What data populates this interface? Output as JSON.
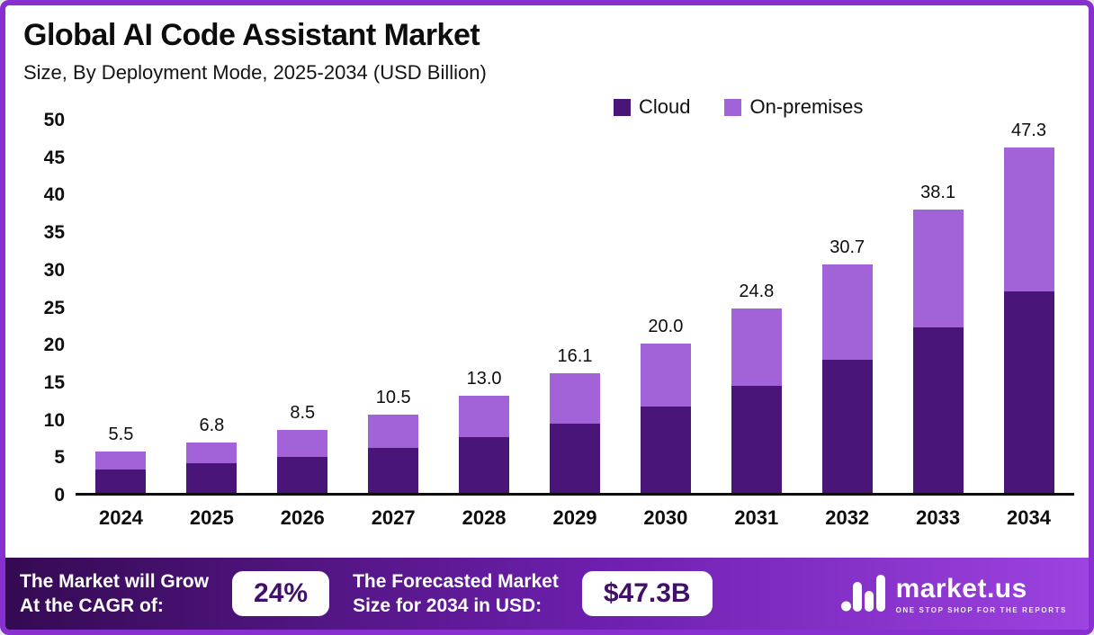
{
  "header": {
    "title": "Global AI Code Assistant Market",
    "subtitle": "Size, By Deployment Mode, 2025-2034 (USD Billion)"
  },
  "legend": [
    {
      "label": "Cloud",
      "color": "#4a1579"
    },
    {
      "label": "On-premises",
      "color": "#a263d8"
    }
  ],
  "chart_data": {
    "type": "bar",
    "stacked": true,
    "title": "Global AI Code Assistant Market Size, By Deployment Mode, 2025-2034 (USD Billion)",
    "categories": [
      "2024",
      "2025",
      "2026",
      "2027",
      "2028",
      "2029",
      "2030",
      "2031",
      "2032",
      "2033",
      "2034"
    ],
    "series": [
      {
        "name": "Cloud",
        "color": "#4a1579",
        "values": [
          3.2,
          4.0,
          4.8,
          6.1,
          7.5,
          9.3,
          11.6,
          14.4,
          17.9,
          22.2,
          27.6
        ]
      },
      {
        "name": "On-premises",
        "color": "#a263d8",
        "values": [
          2.3,
          2.8,
          3.7,
          4.4,
          5.5,
          6.8,
          8.4,
          10.4,
          12.8,
          15.9,
          19.7
        ]
      }
    ],
    "totals": [
      5.5,
      6.8,
      8.5,
      10.5,
      13.0,
      16.1,
      20.0,
      24.8,
      30.7,
      38.1,
      47.3
    ],
    "total_labels": [
      "5.5",
      "6.8",
      "8.5",
      "10.5",
      "13.0",
      "16.1",
      "20.0",
      "24.8",
      "30.7",
      "38.1",
      "47.3"
    ],
    "xlabel": "",
    "ylabel": "",
    "ylim": [
      0,
      50
    ],
    "yticks": [
      0,
      5,
      10,
      15,
      20,
      25,
      30,
      35,
      40,
      45,
      50
    ],
    "grid": false,
    "legend_position": "top"
  },
  "footer": {
    "cagr_label_line1": "The Market will Grow",
    "cagr_label_line2": "At the CAGR of:",
    "cagr_value": "24%",
    "forecast_label_line1": "The Forecasted Market",
    "forecast_label_line2": "Size for 2034 in USD:",
    "forecast_value": "$47.3B",
    "brand": "market.us",
    "brand_tagline": "ONE STOP SHOP FOR THE REPORTS"
  }
}
